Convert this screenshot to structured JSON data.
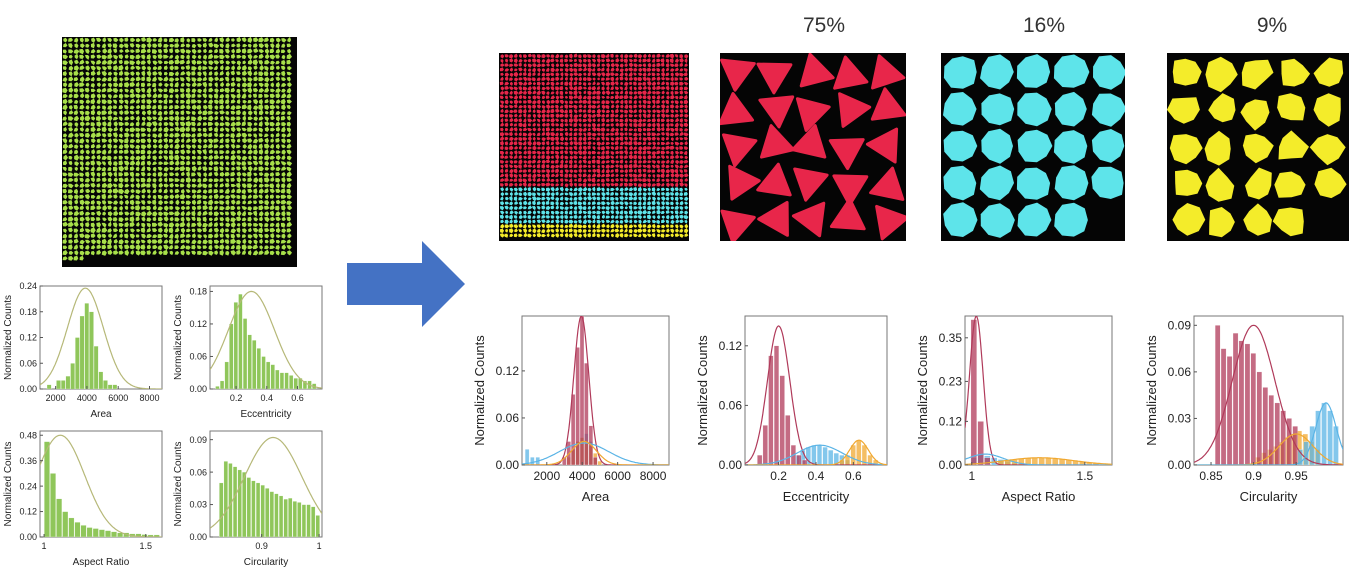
{
  "fractions": [
    "75%",
    "16%",
    "9%"
  ],
  "colors": {
    "input_particles": "#a8e04a",
    "cluster_triangle": "#e8264a",
    "cluster_round": "#5ee4ea",
    "cluster_irregular": "#f4ec2a",
    "hist_green": "#8fc65a",
    "fit_green": "#b6b878",
    "hist_red": "#b03a5a",
    "hist_blue": "#5ab4e6",
    "hist_orange": "#f0a830",
    "arrow": "#4472c4"
  },
  "arrow_icon": "right-arrow",
  "chart_data": [
    {
      "type": "bar",
      "group": "input",
      "xlabel": "Area",
      "ylabel": "Normalized Counts",
      "xlim": [
        1000,
        8800
      ],
      "ylim": [
        0,
        0.24
      ],
      "xticks": [
        "2000",
        "4000",
        "6000",
        "8000"
      ],
      "xtick_values": [
        2000,
        4000,
        6000,
        8000
      ],
      "yticks": [
        "0.00",
        "0.06",
        "0.12",
        "0.18",
        "0.24"
      ],
      "ytick_values": [
        0,
        0.06,
        0.12,
        0.18,
        0.24
      ],
      "bin_width": 300,
      "series": [
        {
          "color": "#8fc65a",
          "x": [
            1600,
            2200,
            2500,
            2800,
            3100,
            3400,
            3700,
            4000,
            4300,
            4600,
            4900,
            5200,
            5500,
            5800
          ],
          "values": [
            0.01,
            0.02,
            0.02,
            0.03,
            0.06,
            0.12,
            0.17,
            0.2,
            0.18,
            0.1,
            0.04,
            0.02,
            0.01,
            0.01
          ]
        }
      ],
      "fit": {
        "color": "#b6b878",
        "mean": 3900,
        "sd": 1150,
        "peak": 0.235
      }
    },
    {
      "type": "bar",
      "group": "input",
      "xlabel": "Eccentricity",
      "ylabel": "Normalized Counts",
      "xlim": [
        0.03,
        0.76
      ],
      "ylim": [
        0,
        0.19
      ],
      "xticks": [
        "0.2",
        "0.4",
        "0.6"
      ],
      "xtick_values": [
        0.2,
        0.4,
        0.6
      ],
      "yticks": [
        "0.00",
        "0.06",
        "0.12",
        "0.18"
      ],
      "ytick_values": [
        0,
        0.06,
        0.12,
        0.18
      ],
      "bin_width": 0.028,
      "series": [
        {
          "color": "#8fc65a",
          "x": [
            0.08,
            0.11,
            0.14,
            0.17,
            0.2,
            0.23,
            0.26,
            0.29,
            0.32,
            0.35,
            0.38,
            0.41,
            0.44,
            0.47,
            0.5,
            0.53,
            0.56,
            0.59,
            0.62,
            0.65,
            0.68,
            0.71
          ],
          "values": [
            0.005,
            0.015,
            0.05,
            0.12,
            0.16,
            0.175,
            0.13,
            0.1,
            0.09,
            0.075,
            0.06,
            0.05,
            0.045,
            0.035,
            0.03,
            0.03,
            0.025,
            0.02,
            0.02,
            0.015,
            0.015,
            0.01
          ]
        }
      ],
      "fit": {
        "color": "#b6b878",
        "mean": 0.3,
        "sd": 0.15,
        "peak": 0.18
      }
    },
    {
      "type": "bar",
      "group": "input",
      "xlabel": "Aspect Ratio",
      "ylabel": "Normalized Counts",
      "xlim": [
        0.98,
        1.58
      ],
      "ylim": [
        0,
        0.5
      ],
      "xticks": [
        "1",
        "1.5"
      ],
      "xtick_values": [
        1,
        1.5
      ],
      "yticks": [
        "0.00",
        "0.12",
        "0.24",
        "0.36",
        "0.48"
      ],
      "ytick_values": [
        0,
        0.12,
        0.24,
        0.36,
        0.48
      ],
      "bin_width": 0.029,
      "series": [
        {
          "color": "#8fc65a",
          "x": [
            1.015,
            1.045,
            1.075,
            1.105,
            1.135,
            1.165,
            1.195,
            1.225,
            1.255,
            1.285,
            1.315,
            1.345,
            1.375,
            1.405,
            1.435,
            1.465,
            1.495,
            1.525,
            1.555
          ],
          "values": [
            0.45,
            0.3,
            0.18,
            0.12,
            0.09,
            0.07,
            0.055,
            0.045,
            0.04,
            0.035,
            0.03,
            0.025,
            0.02,
            0.02,
            0.015,
            0.015,
            0.012,
            0.01,
            0.01
          ]
        }
      ],
      "fit": {
        "color": "#b6b878",
        "mean": 1.08,
        "sd": 0.12,
        "peak": 0.48
      }
    },
    {
      "type": "bar",
      "group": "input",
      "xlabel": "Circularity",
      "ylabel": "Normalized Counts",
      "xlim": [
        0.81,
        1.005
      ],
      "ylim": [
        0,
        0.098
      ],
      "xticks": [
        "0.9",
        "1"
      ],
      "xtick_values": [
        0.9,
        1.0
      ],
      "yticks": [
        "0.00",
        "0.03",
        "0.06",
        "0.09"
      ],
      "ytick_values": [
        0,
        0.03,
        0.06,
        0.09
      ],
      "bin_width": 0.0075,
      "series": [
        {
          "color": "#8fc65a",
          "x": [
            0.83,
            0.838,
            0.846,
            0.854,
            0.862,
            0.87,
            0.878,
            0.886,
            0.894,
            0.902,
            0.91,
            0.918,
            0.926,
            0.934,
            0.942,
            0.95,
            0.958,
            0.966,
            0.974,
            0.982,
            0.99,
            0.998
          ],
          "values": [
            0.05,
            0.07,
            0.068,
            0.065,
            0.062,
            0.06,
            0.055,
            0.052,
            0.05,
            0.048,
            0.045,
            0.042,
            0.04,
            0.038,
            0.035,
            0.036,
            0.033,
            0.032,
            0.03,
            0.03,
            0.028,
            0.02
          ]
        }
      ],
      "fit": {
        "color": "#b6b878",
        "mean": 0.92,
        "sd": 0.05,
        "peak": 0.092
      }
    },
    {
      "type": "bar",
      "group": "clustered",
      "xlabel": "Area",
      "ylabel": "Normalized Counts",
      "xlim": [
        600,
        8900
      ],
      "ylim": [
        0,
        0.19
      ],
      "xticks": [
        "2000",
        "4000",
        "6000",
        "8000"
      ],
      "xtick_values": [
        2000,
        4000,
        6000,
        8000
      ],
      "yticks": [
        "0.00",
        "0.06",
        "0.12"
      ],
      "ytick_values": [
        0,
        0.06,
        0.12
      ],
      "bin_width": 250,
      "series": [
        {
          "color": "#5ab4e6",
          "x": [
            900,
            1200,
            1500,
            3500,
            3750,
            4000,
            4250,
            4500,
            4750
          ],
          "values": [
            0.02,
            0.01,
            0.01,
            0.02,
            0.03,
            0.035,
            0.04,
            0.03,
            0.01
          ]
        },
        {
          "color": "#f0a830",
          "x": [
            3250,
            3500,
            3750,
            4000,
            4250,
            4500,
            4750,
            5000
          ],
          "values": [
            0.01,
            0.02,
            0.03,
            0.035,
            0.03,
            0.025,
            0.015,
            0.005
          ]
        },
        {
          "color": "#b03a5a",
          "x": [
            3000,
            3250,
            3500,
            3750,
            4000,
            4250,
            4500,
            4750
          ],
          "values": [
            0.01,
            0.03,
            0.09,
            0.15,
            0.19,
            0.13,
            0.05,
            0.01
          ]
        }
      ],
      "fits": [
        {
          "color": "#b03a5a",
          "mean": 3950,
          "sd": 420,
          "peak": 0.19
        },
        {
          "color": "#5ab4e6",
          "mean": 4100,
          "sd": 1400,
          "peak": 0.028
        },
        {
          "color": "#f0a830",
          "mean": 4100,
          "sd": 700,
          "peak": 0.03
        }
      ]
    },
    {
      "type": "bar",
      "group": "clustered",
      "xlabel": "Eccentricity",
      "ylabel": "Normalized Counts",
      "xlim": [
        0.02,
        0.78
      ],
      "ylim": [
        0,
        0.15
      ],
      "xticks": [
        "0.2",
        "0.4",
        "0.6"
      ],
      "xtick_values": [
        0.2,
        0.4,
        0.6
      ],
      "yticks": [
        "0.00",
        "0.06",
        "0.12"
      ],
      "ytick_values": [
        0,
        0.06,
        0.12
      ],
      "bin_width": 0.028,
      "series": [
        {
          "color": "#5ab4e6",
          "x": [
            0.3,
            0.33,
            0.36,
            0.39,
            0.42,
            0.45,
            0.48,
            0.51,
            0.54,
            0.57
          ],
          "values": [
            0.01,
            0.015,
            0.018,
            0.02,
            0.02,
            0.018,
            0.015,
            0.012,
            0.01,
            0.005
          ]
        },
        {
          "color": "#f0a830",
          "x": [
            0.54,
            0.57,
            0.6,
            0.63,
            0.66,
            0.69,
            0.72
          ],
          "values": [
            0.005,
            0.01,
            0.02,
            0.025,
            0.02,
            0.01,
            0.005
          ]
        },
        {
          "color": "#b03a5a",
          "x": [
            0.1,
            0.13,
            0.16,
            0.19,
            0.22,
            0.25,
            0.28,
            0.31,
            0.34
          ],
          "values": [
            0.01,
            0.04,
            0.11,
            0.12,
            0.09,
            0.05,
            0.02,
            0.01,
            0.005
          ]
        }
      ],
      "fits": [
        {
          "color": "#b03a5a",
          "mean": 0.2,
          "sd": 0.06,
          "peak": 0.14
        },
        {
          "color": "#5ab4e6",
          "mean": 0.42,
          "sd": 0.12,
          "peak": 0.02
        },
        {
          "color": "#f0a830",
          "mean": 0.63,
          "sd": 0.05,
          "peak": 0.025
        }
      ]
    },
    {
      "type": "bar",
      "group": "clustered",
      "xlabel": "Aspect Ratio",
      "ylabel": "Normalized Counts",
      "xlim": [
        0.97,
        1.62
      ],
      "ylim": [
        0,
        0.41
      ],
      "xticks": [
        "1",
        "1.5"
      ],
      "xtick_values": [
        1,
        1.5
      ],
      "yticks": [
        "0.00",
        "0.12",
        "0.23",
        "0.35"
      ],
      "ytick_values": [
        0,
        0.12,
        0.23,
        0.35
      ],
      "bin_width": 0.028,
      "series": [
        {
          "color": "#5ab4e6",
          "x": [
            1.01,
            1.04,
            1.07,
            1.1,
            1.13,
            1.16,
            1.19
          ],
          "values": [
            0.02,
            0.03,
            0.025,
            0.02,
            0.015,
            0.01,
            0.005
          ]
        },
        {
          "color": "#f0a830",
          "x": [
            1.13,
            1.16,
            1.19,
            1.22,
            1.25,
            1.28,
            1.31,
            1.34,
            1.37,
            1.4,
            1.43,
            1.46,
            1.49,
            1.52,
            1.55
          ],
          "values": [
            0.01,
            0.012,
            0.015,
            0.018,
            0.02,
            0.02,
            0.02,
            0.02,
            0.018,
            0.016,
            0.014,
            0.012,
            0.01,
            0.008,
            0.005
          ]
        },
        {
          "color": "#b03a5a",
          "x": [
            1.01,
            1.04,
            1.07
          ],
          "values": [
            0.4,
            0.12,
            0.02
          ]
        }
      ],
      "fits": [
        {
          "color": "#b03a5a",
          "mean": 1.02,
          "sd": 0.03,
          "peak": 0.41
        },
        {
          "color": "#5ab4e6",
          "mean": 1.06,
          "sd": 0.08,
          "peak": 0.03
        },
        {
          "color": "#f0a830",
          "mean": 1.3,
          "sd": 0.15,
          "peak": 0.02
        }
      ]
    },
    {
      "type": "bar",
      "group": "clustered",
      "xlabel": "Circularity",
      "ylabel": "Normalized Counts",
      "xlim": [
        0.83,
        1.005
      ],
      "ylim": [
        0,
        0.096
      ],
      "xticks": [
        "0.85",
        "0.9",
        "0.95"
      ],
      "xtick_values": [
        0.85,
        0.9,
        0.95
      ],
      "yticks": [
        "0.00",
        "0.03",
        "0.06",
        "0.09"
      ],
      "ytick_values": [
        0,
        0.03,
        0.06,
        0.09
      ],
      "bin_width": 0.0065,
      "series": [
        {
          "color": "#f0a830",
          "x": [
            0.905,
            0.912,
            0.919,
            0.926,
            0.933,
            0.94,
            0.947,
            0.954,
            0.961,
            0.968,
            0.975
          ],
          "values": [
            0.005,
            0.008,
            0.01,
            0.012,
            0.015,
            0.018,
            0.02,
            0.022,
            0.02,
            0.015,
            0.01
          ]
        },
        {
          "color": "#5ab4e6",
          "x": [
            0.955,
            0.962,
            0.969,
            0.976,
            0.983,
            0.99,
            0.997
          ],
          "values": [
            0.01,
            0.015,
            0.025,
            0.035,
            0.04,
            0.035,
            0.025
          ]
        },
        {
          "color": "#b03a5a",
          "x": [
            0.858,
            0.865,
            0.872,
            0.879,
            0.886,
            0.893,
            0.9,
            0.907,
            0.914,
            0.921,
            0.928,
            0.935,
            0.942,
            0.949
          ],
          "values": [
            0.09,
            0.075,
            0.07,
            0.085,
            0.08,
            0.078,
            0.072,
            0.06,
            0.05,
            0.045,
            0.04,
            0.035,
            0.03,
            0.025
          ]
        }
      ],
      "fits": [
        {
          "color": "#b03a5a",
          "mean": 0.9,
          "sd": 0.025,
          "peak": 0.09
        },
        {
          "color": "#f0a830",
          "mean": 0.95,
          "sd": 0.02,
          "peak": 0.02
        },
        {
          "color": "#5ab4e6",
          "mean": 0.985,
          "sd": 0.012,
          "peak": 0.04
        }
      ]
    }
  ]
}
